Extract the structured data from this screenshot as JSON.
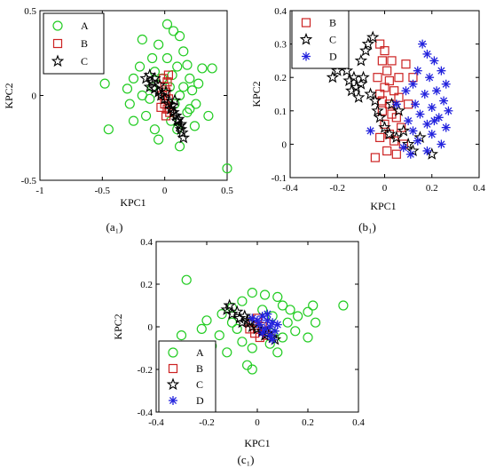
{
  "colors": {
    "A": "#22cc22",
    "B": "#cc2222",
    "C": "#000000",
    "D": "#2222dd"
  },
  "marker_shapes": {
    "A": "circle",
    "B": "square",
    "C": "star",
    "D": "asterisk"
  },
  "chart_data": [
    {
      "panel": "a1",
      "type": "scatter",
      "caption": "(a₁)",
      "xlabel": "KPC1",
      "ylabel": "KPC2",
      "xlim": [
        -1,
        0.5
      ],
      "ylim": [
        -0.5,
        0.5
      ],
      "xticks": [
        -1,
        -0.5,
        0,
        0.5
      ],
      "yticks": [
        -0.5,
        0,
        0.5
      ],
      "xtick_labels": [
        "-1",
        "-0.5",
        "0",
        "0.5"
      ],
      "ytick_labels": [
        "-0.5",
        "0",
        "0.5"
      ],
      "legend_position": "top-left",
      "series": [
        {
          "name": "A",
          "marker": "circle",
          "points": [
            [
              0.02,
              0.42
            ],
            [
              0.07,
              0.38
            ],
            [
              -0.18,
              0.33
            ],
            [
              0.12,
              0.35
            ],
            [
              -0.05,
              0.3
            ],
            [
              0.15,
              0.26
            ],
            [
              -0.1,
              0.22
            ],
            [
              0.02,
              0.22
            ],
            [
              0.18,
              0.18
            ],
            [
              -0.2,
              0.17
            ],
            [
              0.1,
              0.17
            ],
            [
              -0.08,
              0.14
            ],
            [
              0.3,
              0.16
            ],
            [
              0.38,
              0.16
            ],
            [
              -0.25,
              0.1
            ],
            [
              0.06,
              0.12
            ],
            [
              0.2,
              0.1
            ],
            [
              -0.48,
              0.07
            ],
            [
              -0.3,
              0.04
            ],
            [
              0.22,
              0.03
            ],
            [
              -0.18,
              0.0
            ],
            [
              0.12,
              0.0
            ],
            [
              -0.12,
              -0.02
            ],
            [
              0.25,
              -0.05
            ],
            [
              -0.28,
              -0.05
            ],
            [
              0.2,
              -0.08
            ],
            [
              -0.15,
              -0.12
            ],
            [
              0.18,
              -0.1
            ],
            [
              0.35,
              -0.12
            ],
            [
              -0.25,
              -0.15
            ],
            [
              0.05,
              -0.15
            ],
            [
              -0.08,
              -0.2
            ],
            [
              0.1,
              -0.2
            ],
            [
              0.24,
              -0.18
            ],
            [
              -0.05,
              -0.26
            ],
            [
              0.12,
              -0.3
            ],
            [
              0.5,
              -0.43
            ],
            [
              0.04,
              0.05
            ],
            [
              -0.02,
              0.1
            ],
            [
              0.15,
              0.05
            ],
            [
              -0.45,
              -0.2
            ],
            [
              0.27,
              0.07
            ],
            [
              -0.1,
              0.05
            ],
            [
              0.08,
              -0.05
            ]
          ]
        },
        {
          "name": "B",
          "marker": "square",
          "points": [
            [
              0.0,
              0.05
            ],
            [
              0.02,
              0.08
            ],
            [
              0.01,
              0.02
            ],
            [
              -0.02,
              0.0
            ],
            [
              0.03,
              -0.02
            ],
            [
              0.0,
              -0.05
            ],
            [
              0.02,
              -0.08
            ],
            [
              -0.03,
              -0.07
            ],
            [
              0.04,
              -0.1
            ],
            [
              0.01,
              -0.12
            ],
            [
              -0.01,
              0.1
            ],
            [
              0.03,
              0.12
            ]
          ]
        },
        {
          "name": "C",
          "marker": "star",
          "points": [
            [
              -0.15,
              0.1
            ],
            [
              -0.12,
              0.05
            ],
            [
              -0.1,
              0.08
            ],
            [
              -0.08,
              0.04
            ],
            [
              -0.05,
              0.02
            ],
            [
              -0.03,
              0.0
            ],
            [
              0.0,
              -0.02
            ],
            [
              0.03,
              -0.05
            ],
            [
              0.05,
              -0.08
            ],
            [
              0.07,
              -0.1
            ],
            [
              0.09,
              -0.12
            ],
            [
              0.1,
              -0.15
            ],
            [
              0.12,
              -0.18
            ],
            [
              0.13,
              -0.2
            ],
            [
              0.14,
              -0.22
            ],
            [
              -0.08,
              0.1
            ],
            [
              -0.04,
              0.06
            ],
            [
              0.01,
              0.02
            ],
            [
              0.06,
              -0.06
            ],
            [
              0.11,
              -0.14
            ],
            [
              0.15,
              -0.25
            ],
            [
              -0.12,
              0.12
            ],
            [
              0.08,
              -0.03
            ],
            [
              0.13,
              -0.17
            ]
          ]
        }
      ]
    },
    {
      "panel": "b1",
      "type": "scatter",
      "caption": "(b₁)",
      "xlabel": "KPC1",
      "ylabel": "KPC2",
      "xlim": [
        -0.4,
        0.4
      ],
      "ylim": [
        -0.1,
        0.4
      ],
      "xticks": [
        -0.4,
        -0.2,
        0,
        0.2,
        0.4
      ],
      "yticks": [
        -0.1,
        0,
        0.1,
        0.2,
        0.3,
        0.4
      ],
      "xtick_labels": [
        "-0.4",
        "-0.2",
        "0",
        "0.2",
        "0.4"
      ],
      "ytick_labels": [
        "-0.1",
        "0",
        "0.1",
        "0.2",
        "0.3",
        "0.4"
      ],
      "legend_position": "top-left",
      "series": [
        {
          "name": "B",
          "marker": "square",
          "points": [
            [
              -0.02,
              0.3
            ],
            [
              0.0,
              0.28
            ],
            [
              -0.01,
              0.25
            ],
            [
              0.01,
              0.22
            ],
            [
              -0.03,
              0.2
            ],
            [
              0.02,
              0.19
            ],
            [
              0.0,
              0.17
            ],
            [
              0.04,
              0.16
            ],
            [
              -0.02,
              0.15
            ],
            [
              0.06,
              0.14
            ],
            [
              0.02,
              0.12
            ],
            [
              -0.01,
              0.1
            ],
            [
              0.03,
              0.09
            ],
            [
              0.05,
              0.08
            ],
            [
              0.0,
              0.06
            ],
            [
              0.07,
              0.05
            ],
            [
              0.02,
              0.03
            ],
            [
              -0.02,
              0.02
            ],
            [
              0.04,
              0.01
            ],
            [
              0.08,
              0.0
            ],
            [
              0.01,
              -0.02
            ],
            [
              -0.04,
              -0.04
            ],
            [
              0.05,
              -0.03
            ],
            [
              0.1,
              0.12
            ],
            [
              0.12,
              0.2
            ],
            [
              0.09,
              0.24
            ],
            [
              0.06,
              0.2
            ],
            [
              0.03,
              0.25
            ],
            [
              -0.01,
              0.13
            ]
          ]
        },
        {
          "name": "C",
          "marker": "star",
          "points": [
            [
              -0.22,
              0.2
            ],
            [
              -0.2,
              0.22
            ],
            [
              -0.18,
              0.24
            ],
            [
              -0.16,
              0.22
            ],
            [
              -0.15,
              0.19
            ],
            [
              -0.13,
              0.2
            ],
            [
              -0.12,
              0.17
            ],
            [
              -0.1,
              0.18
            ],
            [
              -0.1,
              0.25
            ],
            [
              -0.08,
              0.28
            ],
            [
              -0.07,
              0.3
            ],
            [
              -0.05,
              0.32
            ],
            [
              -0.06,
              0.15
            ],
            [
              -0.04,
              0.13
            ],
            [
              -0.03,
              0.1
            ],
            [
              -0.02,
              0.08
            ],
            [
              0.0,
              0.05
            ],
            [
              0.02,
              0.03
            ],
            [
              0.05,
              0.02
            ],
            [
              0.08,
              0.04
            ],
            [
              0.1,
              0.0
            ],
            [
              0.12,
              -0.02
            ],
            [
              0.15,
              0.02
            ],
            [
              0.2,
              -0.03
            ],
            [
              -0.14,
              0.16
            ],
            [
              -0.09,
              0.2
            ],
            [
              -0.11,
              0.14
            ],
            [
              0.06,
              0.1
            ],
            [
              0.03,
              0.12
            ]
          ]
        },
        {
          "name": "D",
          "marker": "asterisk",
          "points": [
            [
              0.16,
              0.3
            ],
            [
              0.18,
              0.27
            ],
            [
              0.21,
              0.25
            ],
            [
              0.24,
              0.22
            ],
            [
              0.14,
              0.22
            ],
            [
              0.19,
              0.2
            ],
            [
              0.26,
              0.18
            ],
            [
              0.12,
              0.18
            ],
            [
              0.22,
              0.16
            ],
            [
              0.17,
              0.15
            ],
            [
              0.25,
              0.13
            ],
            [
              0.13,
              0.12
            ],
            [
              0.2,
              0.11
            ],
            [
              0.27,
              0.1
            ],
            [
              0.15,
              0.09
            ],
            [
              0.23,
              0.08
            ],
            [
              0.1,
              0.07
            ],
            [
              0.18,
              0.06
            ],
            [
              0.26,
              0.05
            ],
            [
              0.12,
              0.04
            ],
            [
              0.2,
              0.03
            ],
            [
              0.14,
              0.01
            ],
            [
              0.24,
              0.0
            ],
            [
              0.08,
              -0.01
            ],
            [
              0.18,
              -0.02
            ],
            [
              0.11,
              -0.03
            ],
            [
              0.21,
              0.07
            ],
            [
              -0.06,
              0.04
            ],
            [
              0.05,
              0.12
            ],
            [
              0.09,
              0.16
            ]
          ]
        }
      ]
    },
    {
      "panel": "c1",
      "type": "scatter",
      "caption": "(c₁)",
      "xlabel": "KPC1",
      "ylabel": "KPC2",
      "xlim": [
        -0.4,
        0.4
      ],
      "ylim": [
        -0.4,
        0.4
      ],
      "xticks": [
        -0.4,
        -0.2,
        0,
        0.2,
        0.4
      ],
      "yticks": [
        -0.4,
        -0.2,
        0,
        0.2,
        0.4
      ],
      "xtick_labels": [
        "-0.4",
        "-0.2",
        "0",
        "0.2",
        "0.4"
      ],
      "ytick_labels": [
        "-0.4",
        "-0.2",
        "0",
        "0.2",
        "0.4"
      ],
      "legend_position": "bottom-left",
      "series": [
        {
          "name": "A",
          "marker": "circle",
          "points": [
            [
              -0.28,
              0.22
            ],
            [
              -0.02,
              0.16
            ],
            [
              0.03,
              0.15
            ],
            [
              0.08,
              0.14
            ],
            [
              -0.06,
              0.12
            ],
            [
              0.1,
              0.1
            ],
            [
              0.22,
              0.1
            ],
            [
              0.34,
              0.1
            ],
            [
              -0.1,
              0.09
            ],
            [
              0.13,
              0.08
            ],
            [
              0.2,
              0.07
            ],
            [
              -0.14,
              0.06
            ],
            [
              0.06,
              0.05
            ],
            [
              0.16,
              0.05
            ],
            [
              -0.2,
              0.03
            ],
            [
              -0.1,
              0.02
            ],
            [
              0.12,
              0.02
            ],
            [
              0.23,
              0.02
            ],
            [
              -0.22,
              -0.01
            ],
            [
              -0.08,
              -0.01
            ],
            [
              0.15,
              -0.02
            ],
            [
              -0.15,
              -0.04
            ],
            [
              0.1,
              -0.05
            ],
            [
              0.2,
              -0.05
            ],
            [
              -0.06,
              -0.07
            ],
            [
              0.05,
              -0.08
            ],
            [
              -0.18,
              -0.09
            ],
            [
              -0.02,
              -0.1
            ],
            [
              0.08,
              -0.12
            ],
            [
              -0.12,
              -0.12
            ],
            [
              -0.04,
              -0.18
            ],
            [
              -0.02,
              -0.2
            ],
            [
              -0.3,
              -0.04
            ],
            [
              0.02,
              0.08
            ],
            [
              0.06,
              -0.03
            ]
          ]
        },
        {
          "name": "B",
          "marker": "square",
          "points": [
            [
              -0.02,
              0.02
            ],
            [
              0.0,
              -0.01
            ],
            [
              0.02,
              0.0
            ],
            [
              -0.01,
              -0.03
            ],
            [
              0.01,
              -0.05
            ],
            [
              0.03,
              -0.02
            ],
            [
              0.0,
              0.04
            ],
            [
              -0.03,
              -0.01
            ],
            [
              0.04,
              -0.04
            ]
          ]
        },
        {
          "name": "C",
          "marker": "star",
          "points": [
            [
              -0.12,
              0.08
            ],
            [
              -0.1,
              0.06
            ],
            [
              -0.08,
              0.07
            ],
            [
              -0.07,
              0.04
            ],
            [
              -0.05,
              0.05
            ],
            [
              -0.04,
              0.03
            ],
            [
              -0.03,
              0.02
            ],
            [
              -0.02,
              0.0
            ],
            [
              0.0,
              -0.01
            ],
            [
              0.02,
              -0.02
            ],
            [
              0.04,
              -0.03
            ],
            [
              0.06,
              -0.05
            ],
            [
              0.07,
              -0.06
            ],
            [
              -0.11,
              0.1
            ],
            [
              -0.06,
              0.02
            ],
            [
              0.03,
              -0.04
            ]
          ]
        },
        {
          "name": "D",
          "marker": "asterisk",
          "points": [
            [
              0.02,
              0.05
            ],
            [
              0.04,
              0.03
            ],
            [
              0.05,
              0.0
            ],
            [
              0.03,
              -0.01
            ],
            [
              0.06,
              0.02
            ],
            [
              0.0,
              0.03
            ],
            [
              0.07,
              -0.02
            ],
            [
              0.02,
              -0.03
            ],
            [
              0.05,
              -0.04
            ],
            [
              -0.02,
              0.04
            ],
            [
              0.08,
              0.01
            ],
            [
              0.04,
              0.06
            ],
            [
              0.01,
              0.01
            ],
            [
              0.06,
              -0.06
            ]
          ]
        }
      ]
    }
  ]
}
